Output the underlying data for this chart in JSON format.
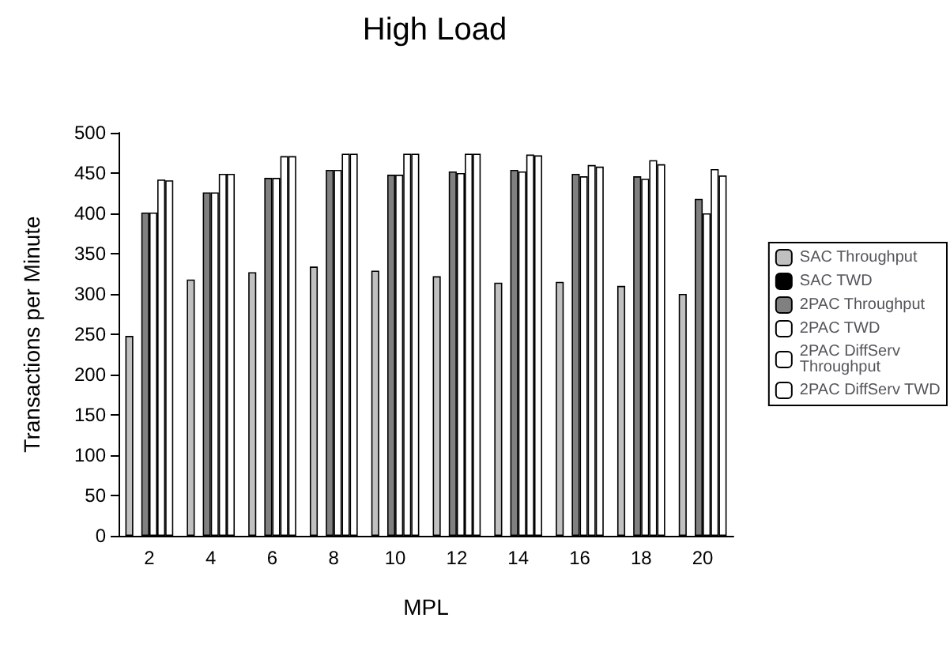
{
  "chart_data": {
    "type": "bar",
    "title": "High Load",
    "xlabel": "MPL",
    "ylabel": "Transactions per Minute",
    "categories": [
      "2",
      "4",
      "6",
      "8",
      "10",
      "12",
      "14",
      "16",
      "18",
      "20"
    ],
    "series": [
      {
        "name": "SAC Throughput",
        "color": "#c0c0c0",
        "values": [
          248,
          318,
          327,
          334,
          329,
          322,
          314,
          315,
          310,
          300
        ]
      },
      {
        "name": "SAC TWD",
        "color": "#000000",
        "values": [
          null,
          null,
          null,
          null,
          null,
          null,
          null,
          null,
          null,
          null
        ]
      },
      {
        "name": "2PAC Throughput",
        "color": "#808080",
        "values": [
          401,
          426,
          444,
          454,
          448,
          452,
          454,
          449,
          446,
          418
        ]
      },
      {
        "name": "2PAC TWD",
        "color": "#ffffff",
        "values": [
          401,
          426,
          444,
          454,
          448,
          450,
          452,
          446,
          443,
          400
        ]
      },
      {
        "name": "2PAC DiffServ Throughput",
        "color": "#ffffff",
        "values": [
          442,
          449,
          471,
          474,
          474,
          474,
          473,
          460,
          466,
          455
        ]
      },
      {
        "name": "2PAC DiffServ TWD",
        "color": "#ffffff",
        "values": [
          441,
          449,
          471,
          474,
          474,
          474,
          472,
          458,
          461,
          447
        ]
      }
    ],
    "ylim": [
      0,
      500
    ],
    "yticks": [
      0,
      50,
      100,
      150,
      200,
      250,
      300,
      350,
      400,
      450,
      500
    ],
    "grid": false,
    "legend": "right"
  }
}
